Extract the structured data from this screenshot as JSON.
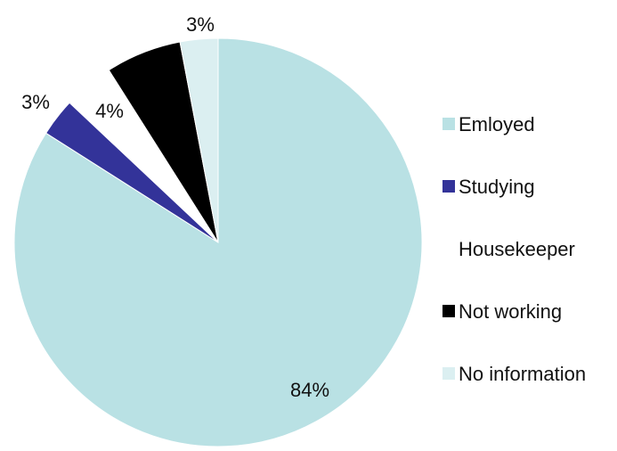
{
  "chart_data": {
    "type": "pie",
    "categories": [
      "Emloyed",
      "Studying",
      "Housekeeper",
      "Not working",
      "No information"
    ],
    "values": [
      84,
      3,
      4,
      6,
      3
    ],
    "labels": [
      "84%",
      "3%",
      "4%",
      "",
      "3%"
    ],
    "colors": [
      "#b9e1e4",
      "#333399",
      "#ffffff",
      "#000000",
      "#dbeff1"
    ],
    "start_angle_deg": 0,
    "direction": "clockwise",
    "legend_position": "right"
  }
}
